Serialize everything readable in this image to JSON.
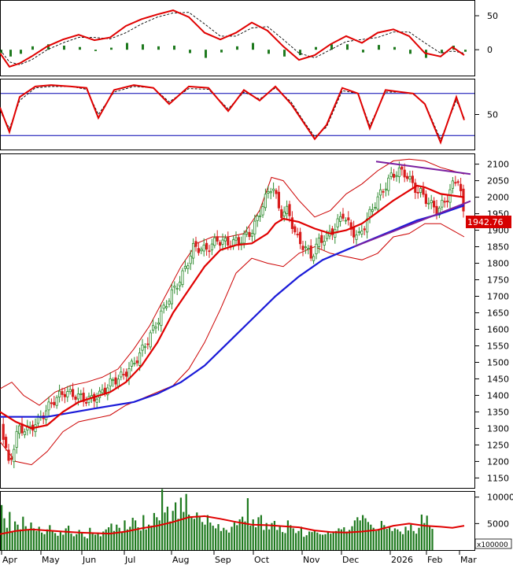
{
  "colors": {
    "candle_up": "#2e8b2e",
    "candle_down": "#d81c1c",
    "ma_short": "#e00000",
    "ma_long": "#1a1ad8",
    "band": "#cc0000",
    "trendline": "#7a1fa0",
    "volume": "#1f7a1f",
    "level_line": "#0000b0",
    "price_tag_bg": "#d60000",
    "price_tag_text": "#ffffff",
    "grid": "#000000"
  },
  "chart_data": [
    {
      "type": "line",
      "panel": "oscillator",
      "y_ticks": [
        "50",
        "0"
      ],
      "ylim": [
        -38,
        72
      ],
      "x": [
        0,
        12,
        25,
        40,
        60,
        80,
        100,
        120,
        140,
        160,
        180,
        200,
        220,
        240,
        260,
        280,
        300,
        320,
        340,
        360,
        380,
        400,
        420,
        440,
        460,
        480,
        500,
        520,
        540,
        560,
        575,
        590
      ],
      "series": [
        {
          "values": [
            -5,
            -25,
            -20,
            -10,
            5,
            15,
            22,
            14,
            18,
            35,
            45,
            52,
            58,
            48,
            25,
            15,
            25,
            40,
            28,
            5,
            -15,
            -8,
            8,
            20,
            10,
            25,
            30,
            20,
            -5,
            -10,
            4,
            -8
          ]
        },
        {
          "values": [
            0,
            -18,
            -22,
            -15,
            0,
            10,
            18,
            18,
            16,
            25,
            38,
            48,
            54,
            55,
            38,
            20,
            20,
            32,
            34,
            15,
            -5,
            -12,
            0,
            12,
            15,
            18,
            26,
            26,
            10,
            -5,
            -2,
            -5
          ]
        }
      ],
      "histogram": [
        -5,
        -10,
        -6,
        5,
        8,
        6,
        4,
        -2,
        3,
        10,
        8,
        5,
        6,
        -5,
        -12,
        -4,
        5,
        10,
        -6,
        -10,
        -8,
        4,
        8,
        8,
        -4,
        7,
        4,
        -6,
        -12,
        -5,
        6,
        -3
      ]
    },
    {
      "type": "line",
      "panel": "momentum",
      "y_ticks": [
        "50"
      ],
      "ylim": [
        0,
        100
      ],
      "levels": [
        80,
        20
      ],
      "x": [
        0,
        12,
        25,
        45,
        65,
        90,
        110,
        125,
        145,
        170,
        195,
        215,
        240,
        265,
        290,
        310,
        330,
        350,
        370,
        385,
        400,
        415,
        435,
        455,
        470,
        490,
        510,
        525,
        540,
        560,
        580,
        590
      ],
      "series": [
        {
          "values": [
            60,
            25,
            75,
            90,
            92,
            90,
            88,
            45,
            85,
            92,
            88,
            65,
            90,
            88,
            55,
            85,
            70,
            90,
            65,
            40,
            15,
            35,
            88,
            80,
            30,
            85,
            82,
            80,
            65,
            10,
            75,
            42
          ]
        },
        {
          "values": [
            55,
            30,
            70,
            88,
            90,
            90,
            86,
            50,
            82,
            90,
            88,
            68,
            87,
            86,
            58,
            82,
            72,
            88,
            68,
            42,
            18,
            32,
            84,
            80,
            34,
            82,
            82,
            79,
            66,
            14,
            70,
            45
          ]
        }
      ]
    },
    {
      "type": "candlestick",
      "panel": "price",
      "y_ticks": [
        "2100",
        "2050",
        "2000",
        "1950",
        "1900",
        "1850",
        "1800",
        "1750",
        "1700",
        "1650",
        "1600",
        "1550",
        "1500",
        "1450",
        "1400",
        "1350",
        "1300",
        "1250",
        "1200",
        "1150"
      ],
      "ylim": [
        1120,
        2130
      ],
      "last_price": "1942.76",
      "x_labels": [
        "Apr",
        "May",
        "Jun",
        "Jul",
        "Aug",
        "Sep",
        "Oct",
        "Nov",
        "Dec",
        "2026",
        "Feb",
        "Mar"
      ],
      "close_path": {
        "x": [
          0,
          5,
          10,
          15,
          22,
          35,
          50,
          65,
          80,
          95,
          110,
          125,
          140,
          155,
          170,
          185,
          200,
          215,
          230,
          245,
          260,
          275,
          290,
          305,
          320,
          335,
          345,
          355,
          365,
          375,
          385,
          395,
          405,
          415,
          425,
          435,
          445,
          455,
          465,
          475,
          485,
          495,
          505,
          515,
          525,
          535,
          545,
          555,
          565,
          575,
          582,
          588
        ],
        "values": [
          1320,
          1250,
          1190,
          1230,
          1300,
          1295,
          1330,
          1380,
          1410,
          1400,
          1385,
          1400,
          1440,
          1460,
          1500,
          1560,
          1630,
          1700,
          1760,
          1850,
          1840,
          1870,
          1860,
          1870,
          1900,
          1990,
          2040,
          1950,
          1960,
          1880,
          1850,
          1820,
          1870,
          1880,
          1910,
          1950,
          1900,
          1880,
          1930,
          1980,
          2020,
          2060,
          2080,
          2070,
          2030,
          2010,
          1980,
          1960,
          1990,
          2040,
          2060,
          1942
        ]
      },
      "ma20": {
        "x": [
          0,
          20,
          40,
          60,
          80,
          100,
          120,
          140,
          160,
          180,
          200,
          220,
          240,
          260,
          280,
          300,
          320,
          340,
          350,
          360,
          380,
          400,
          420,
          440,
          460,
          480,
          500,
          520,
          530,
          540,
          560,
          575,
          590
        ],
        "values": [
          1350,
          1320,
          1300,
          1310,
          1350,
          1380,
          1395,
          1410,
          1440,
          1490,
          1560,
          1650,
          1720,
          1790,
          1840,
          1855,
          1860,
          1890,
          1920,
          1935,
          1925,
          1905,
          1890,
          1900,
          1920,
          1955,
          1990,
          2020,
          2035,
          2030,
          2010,
          2005,
          2000
        ]
      },
      "ma200": {
        "x": [
          0,
          60,
          120,
          170,
          200,
          230,
          260,
          290,
          320,
          350,
          380,
          410,
          440,
          470,
          500,
          530,
          560,
          590
        ],
        "values": [
          1335,
          1335,
          1360,
          1380,
          1405,
          1440,
          1490,
          1560,
          1630,
          1700,
          1760,
          1810,
          1840,
          1870,
          1900,
          1930,
          1950,
          1975
        ]
      },
      "upper_band": {
        "x": [
          0,
          15,
          30,
          50,
          70,
          90,
          110,
          130,
          150,
          170,
          190,
          210,
          230,
          250,
          270,
          290,
          310,
          330,
          345,
          360,
          380,
          400,
          420,
          440,
          460,
          480,
          500,
          520,
          540,
          560,
          575,
          590
        ],
        "values": [
          1420,
          1440,
          1400,
          1370,
          1410,
          1430,
          1440,
          1455,
          1480,
          1540,
          1610,
          1700,
          1790,
          1860,
          1880,
          1880,
          1890,
          1960,
          2060,
          2050,
          1990,
          1940,
          1960,
          2010,
          2040,
          2080,
          2110,
          2115,
          2110,
          2090,
          2080,
          2070
        ]
      },
      "lower_band": {
        "x": [
          0,
          20,
          40,
          60,
          80,
          100,
          120,
          140,
          160,
          180,
          200,
          220,
          240,
          260,
          280,
          300,
          320,
          340,
          360,
          380,
          400,
          420,
          440,
          460,
          480,
          500,
          520,
          540,
          560,
          575,
          590
        ],
        "values": [
          1260,
          1200,
          1190,
          1230,
          1290,
          1320,
          1330,
          1340,
          1370,
          1390,
          1410,
          1430,
          1480,
          1560,
          1660,
          1770,
          1815,
          1800,
          1790,
          1830,
          1850,
          1830,
          1820,
          1810,
          1830,
          1880,
          1890,
          1920,
          1920,
          1900,
          1880
        ]
      },
      "trendlines": [
        {
          "x": [
            478,
            598
          ],
          "values": [
            2108,
            2070
          ]
        },
        {
          "x": [
            450,
            598
          ],
          "values": [
            1850,
            1988
          ]
        }
      ]
    },
    {
      "type": "bar",
      "panel": "volume",
      "y_ticks": [
        "10000",
        "5000"
      ],
      "ylim": [
        0,
        11000
      ],
      "unit_label": "x100000",
      "x_step": 3.4,
      "values": [
        8500,
        6000,
        4200,
        7200,
        3500,
        5400,
        4800,
        3900,
        6300,
        4500,
        3800,
        5200,
        4100,
        3600,
        4400,
        3300,
        3000,
        3900,
        4700,
        3500,
        3200,
        2700,
        3400,
        2900,
        4100,
        4600,
        3100,
        2600,
        3000,
        3800,
        3300,
        2500,
        2200,
        4200,
        3100,
        2900,
        3300,
        2600,
        3500,
        3900,
        4300,
        5000,
        3600,
        4800,
        4200,
        3400,
        5600,
        3900,
        4400,
        6100,
        5600,
        4300,
        3700,
        6600,
        3900,
        4800,
        4600,
        7000,
        6200,
        5600,
        11500,
        7100,
        8200,
        5400,
        7400,
        9000,
        5900,
        9900,
        7200,
        10600,
        6700,
        6100,
        5900,
        7100,
        6300,
        5300,
        4800,
        6600,
        5200,
        4600,
        4100,
        4900,
        3600,
        4200,
        3800,
        3300,
        4400,
        5200,
        4700,
        5800,
        6300,
        5400,
        9800,
        4600,
        5800,
        4300,
        6200,
        6600,
        3800,
        5100,
        3900,
        5100,
        5500,
        3800,
        4600,
        3400,
        3200,
        5600,
        4700,
        4100,
        3200,
        3600,
        4400,
        2500,
        2800,
        3500,
        3400,
        3800,
        3300,
        3000,
        2900,
        3000,
        3500,
        3100,
        3400,
        3600,
        4100,
        3900,
        4300,
        3500,
        3800,
        4500,
        5600,
        6200,
        5600,
        6600,
        6000,
        5300,
        4800,
        4200,
        3600,
        4000,
        5500,
        4700,
        4000,
        4400,
        3600,
        4100,
        3900,
        3500,
        3000,
        4400,
        3700,
        4800,
        3600,
        3100,
        4200,
        6700,
        5100,
        6500,
        4400,
        4000
      ],
      "average": {
        "x": [
          0,
          20,
          40,
          60,
          80,
          100,
          120,
          140,
          160,
          180,
          200,
          220,
          240,
          260,
          280,
          300,
          320,
          340,
          360,
          380,
          400,
          420,
          440,
          460,
          480,
          500,
          520,
          540,
          560,
          575,
          590
        ],
        "values": [
          3000,
          3600,
          3900,
          3700,
          3500,
          3300,
          3200,
          3100,
          3500,
          4100,
          4600,
          5300,
          6200,
          6400,
          5900,
          5300,
          4800,
          4700,
          4500,
          4300,
          3700,
          3400,
          3300,
          3500,
          3800,
          4600,
          5000,
          4600,
          4400,
          4200,
          4600
        ]
      }
    }
  ]
}
